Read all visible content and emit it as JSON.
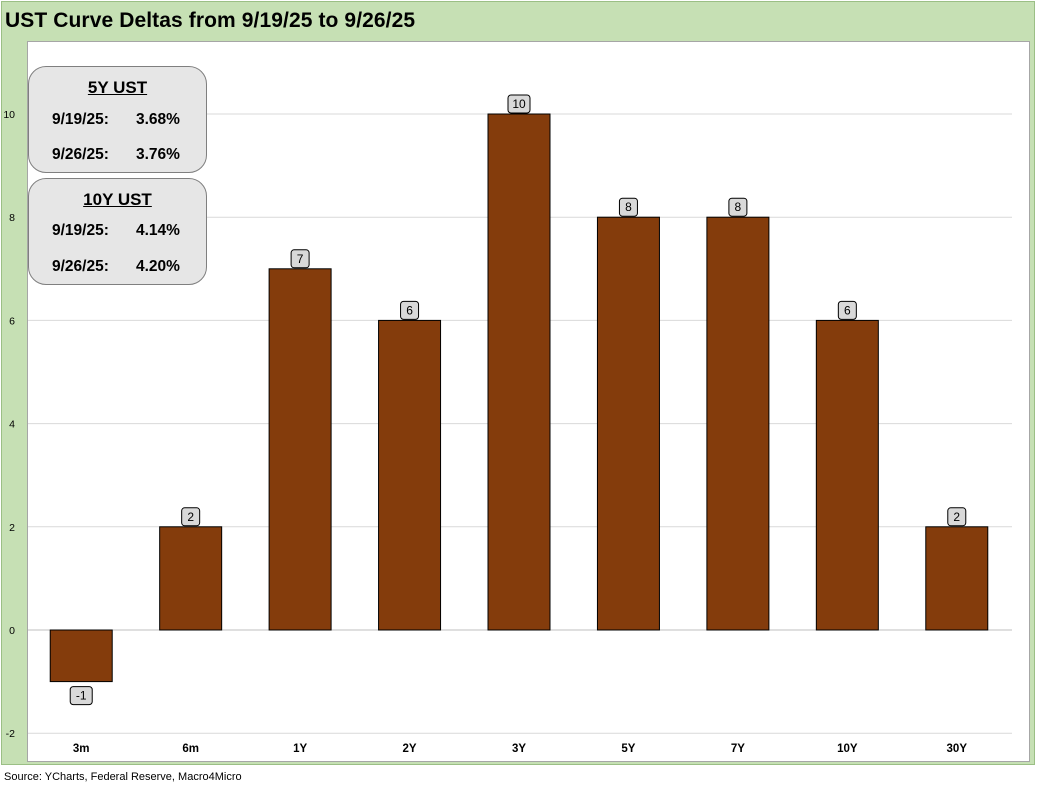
{
  "title": "UST Curve Deltas from 9/19/25 to 9/26/25",
  "source": "Source: YCharts, Federal Reserve, Macro4Micro",
  "colors": {
    "bar": "#843c0c",
    "frame": "#c6e0b4",
    "label_bg": "#d9d9d9"
  },
  "info_boxes": [
    {
      "title": "5Y UST",
      "rows": [
        {
          "date": "9/19/25:",
          "value": "3.68%"
        },
        {
          "date": "9/26/25:",
          "value": "3.76%"
        }
      ]
    },
    {
      "title": "10Y UST",
      "rows": [
        {
          "date": "9/19/25:",
          "value": "4.14%"
        },
        {
          "date": "9/26/25:",
          "value": "4.20%"
        }
      ]
    }
  ],
  "chart_data": {
    "type": "bar",
    "title": "UST Curve Deltas from 9/19/25 to 9/26/25",
    "categories": [
      "3m",
      "6m",
      "1Y",
      "2Y",
      "3Y",
      "5Y",
      "7Y",
      "10Y",
      "30Y"
    ],
    "values": [
      -1,
      2,
      7,
      6,
      10,
      8,
      8,
      6,
      2
    ],
    "xlabel": "",
    "ylabel": "",
    "ylim": [
      -2,
      11
    ],
    "yticks": [
      -2,
      0,
      2,
      4,
      6,
      8,
      10
    ],
    "grid": true,
    "data_labels": true
  }
}
